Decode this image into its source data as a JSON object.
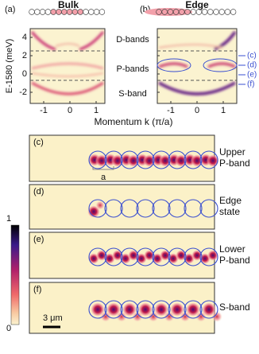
{
  "figure": {
    "panel_a": {
      "label": "(a)",
      "title": "Bulk"
    },
    "panel_b": {
      "label": "(b)",
      "title": "Edge"
    },
    "y_axis_label": "E-1580 (meV)",
    "x_axis_label": "Momentum k (π/a)",
    "yticks": [
      4,
      2,
      0,
      -2
    ],
    "xticks": [
      -1,
      0,
      1
    ],
    "band_labels": [
      "D-bands",
      "P-bands",
      "S-band"
    ],
    "state_markers": [
      "(c)",
      "(d)",
      "(e)",
      "(f)"
    ],
    "maps": [
      {
        "label": "(c)",
        "caption": [
          "Upper",
          "P-band"
        ]
      },
      {
        "label": "(d)",
        "caption": [
          "Edge",
          "state"
        ]
      },
      {
        "label": "(e)",
        "caption": [
          "Lower",
          "P-band"
        ]
      },
      {
        "label": "(f)",
        "caption": [
          "S-band"
        ]
      }
    ],
    "lattice_label": "a",
    "scale_bar": "3 μm",
    "colorbar_ticks": [
      1,
      0
    ]
  }
}
